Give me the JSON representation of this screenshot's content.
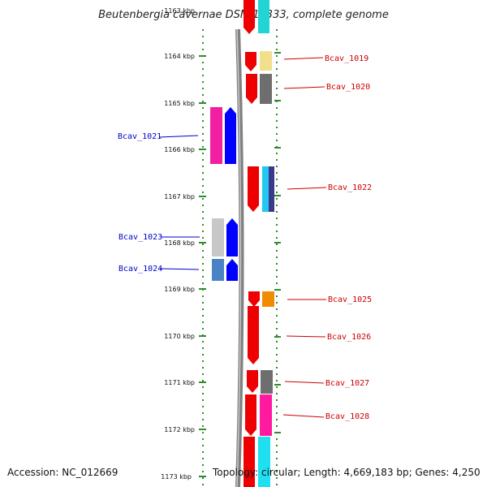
{
  "title": "Beutenbergia cavernae DSM 12333, complete genome",
  "accession_text": "Accession: NC_012669",
  "summary_text": "Topology: circular; Length: 4,669,183 bp; Genes: 4,250",
  "ruler": {
    "unit": "kbp",
    "tick_labels": [
      "1163 kbp",
      "1164 kbp",
      "1165 kbp",
      "1166 kbp",
      "1167 kbp",
      "1168 kbp",
      "1169 kbp",
      "1170 kbp",
      "1171 kbp",
      "1172 kbp",
      "1173 kbp"
    ]
  },
  "colors": {
    "forward_label": "#cc0000",
    "reverse_label": "#0000cc",
    "ruler_dots": "#2e8b2e",
    "backbone": "#808080"
  },
  "gene_labels": {
    "forward": [
      "Bcav_1019",
      "Bcav_1020",
      "Bcav_1022",
      "Bcav_1025",
      "Bcav_1026",
      "Bcav_1027",
      "Bcav_1028"
    ],
    "reverse": [
      "Bcav_1021",
      "Bcav_1023",
      "Bcav_1024"
    ]
  }
}
